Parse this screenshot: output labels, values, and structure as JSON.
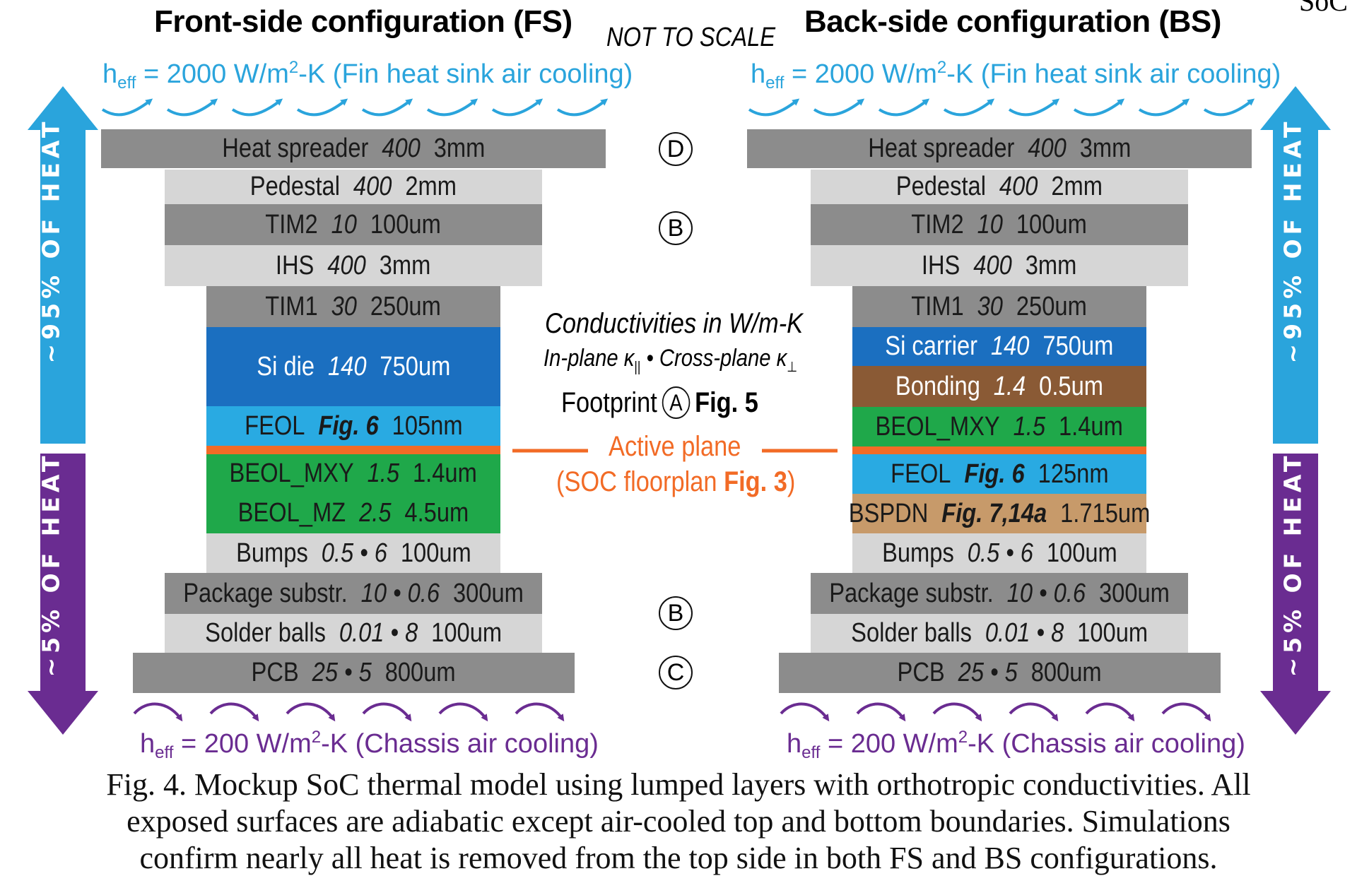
{
  "corner_text": "SoC",
  "not_to_scale": "NOT TO SCALE",
  "fs": {
    "title": "Front-side configuration (FS)",
    "top_cooling": {
      "h": "h",
      "sub": "eff",
      "pre": " = 2000 W/m",
      "sup": "2",
      "post": "-K (Fin heat sink air cooling)"
    },
    "bottom_cooling": {
      "h": "h",
      "sub": "eff",
      "pre": " = 200 W/m",
      "sup": "2",
      "post": "-K (Chassis air cooling)"
    },
    "arrow_up_label": "~95% OF HEAT",
    "arrow_down_label": "~5% OF HEAT",
    "layers": [
      {
        "name": "Heat spreader",
        "k": "400",
        "t": "3mm"
      },
      {
        "name": "Pedestal",
        "k": "400",
        "t": "2mm"
      },
      {
        "name": "TIM2",
        "k": "10",
        "t": "100um"
      },
      {
        "name": "IHS",
        "k": "400",
        "t": "3mm"
      },
      {
        "name": "TIM1",
        "k": "30",
        "t": "250um"
      },
      {
        "name": "Si die",
        "k": "140",
        "t": "750um"
      },
      {
        "name": "FEOL",
        "ref": "Fig. 6",
        "t": "105nm"
      },
      {
        "name": "BEOL_MXY",
        "k": "1.5",
        "t": "1.4um"
      },
      {
        "name": "BEOL_MZ",
        "k": "2.5",
        "t": "4.5um"
      },
      {
        "name": "Bumps",
        "k": "0.5 • 6",
        "t": "100um"
      },
      {
        "name": "Package substr.",
        "k": "10 • 0.6",
        "t": "300um"
      },
      {
        "name": "Solder balls",
        "k": "0.01 • 8",
        "t": "100um"
      },
      {
        "name": "PCB",
        "k": "25 • 5",
        "t": "800um"
      }
    ]
  },
  "bs": {
    "title": "Back-side configuration (BS)",
    "top_cooling": {
      "h": "h",
      "sub": "eff",
      "pre": " = 2000 W/m",
      "sup": "2",
      "post": "-K (Fin heat sink air cooling)"
    },
    "bottom_cooling": {
      "h": "h",
      "sub": "eff",
      "pre": " = 200 W/m",
      "sup": "2",
      "post": "-K (Chassis air cooling)"
    },
    "arrow_up_label": "~95% OF HEAT",
    "arrow_down_label": "~5% OF HEAT",
    "layers": [
      {
        "name": "Heat spreader",
        "k": "400",
        "t": "3mm"
      },
      {
        "name": "Pedestal",
        "k": "400",
        "t": "2mm"
      },
      {
        "name": "TIM2",
        "k": "10",
        "t": "100um"
      },
      {
        "name": "IHS",
        "k": "400",
        "t": "3mm"
      },
      {
        "name": "TIM1",
        "k": "30",
        "t": "250um"
      },
      {
        "name": "Si carrier",
        "k": "140",
        "t": "750um"
      },
      {
        "name": "Bonding",
        "k": "1.4",
        "t": "0.5um"
      },
      {
        "name": "BEOL_MXY",
        "k": "1.5",
        "t": "1.4um"
      },
      {
        "name": "FEOL",
        "ref": "Fig. 6",
        "t": "125nm"
      },
      {
        "name": "BSPDN",
        "ref": "Fig. 7,14a",
        "t": "1.715um"
      },
      {
        "name": "Bumps",
        "k": "0.5 • 6",
        "t": "100um"
      },
      {
        "name": "Package substr.",
        "k": "10 • 0.6",
        "t": "300um"
      },
      {
        "name": "Solder balls",
        "k": "0.01 • 8",
        "t": "100um"
      },
      {
        "name": "PCB",
        "k": "25 • 5",
        "t": "800um"
      }
    ]
  },
  "center": {
    "badges": {
      "d": "D",
      "b_top": "B",
      "a": "A",
      "b_bottom": "B",
      "c": "C"
    },
    "conductivities_title": "Conductivities in W/m-K",
    "conductivities_in_plane": "In-plane κ",
    "in_plane_sub": "||",
    "bullet": " • ",
    "conductivities_cross_plane": "Cross-plane κ",
    "cross_plane_sub": "⊥",
    "footprint": "Footprint",
    "footprint_ref": "Fig. 5",
    "active_plane": "Active plane",
    "soc_floorplan": "(SOC floorplan ",
    "soc_floorplan_ref": "Fig. 3",
    "soc_floorplan_close": ")"
  },
  "caption": {
    "line1": "Fig. 4.  Mockup SoC thermal model using lumped layers with orthotropic conductivities. All",
    "line2": "exposed surfaces are adiabatic except air-cooled top and bottom boundaries. Simulations",
    "line3": "confirm nearly all heat is removed from the top side in both FS and BS configurations."
  },
  "colors": {
    "dark_gray": "#8c8c8c",
    "light_gray": "#d6d6d6",
    "si_blue": "#1b6fc0",
    "feol_blue": "#29aae2",
    "beol_green": "#1fa84a",
    "bonding_brown": "#8a5a35",
    "bspdn_tan": "#c79a6a",
    "active_orange": "#f26b26",
    "cool_top": "#2aa4dc",
    "cool_bottom": "#6a2c91"
  }
}
